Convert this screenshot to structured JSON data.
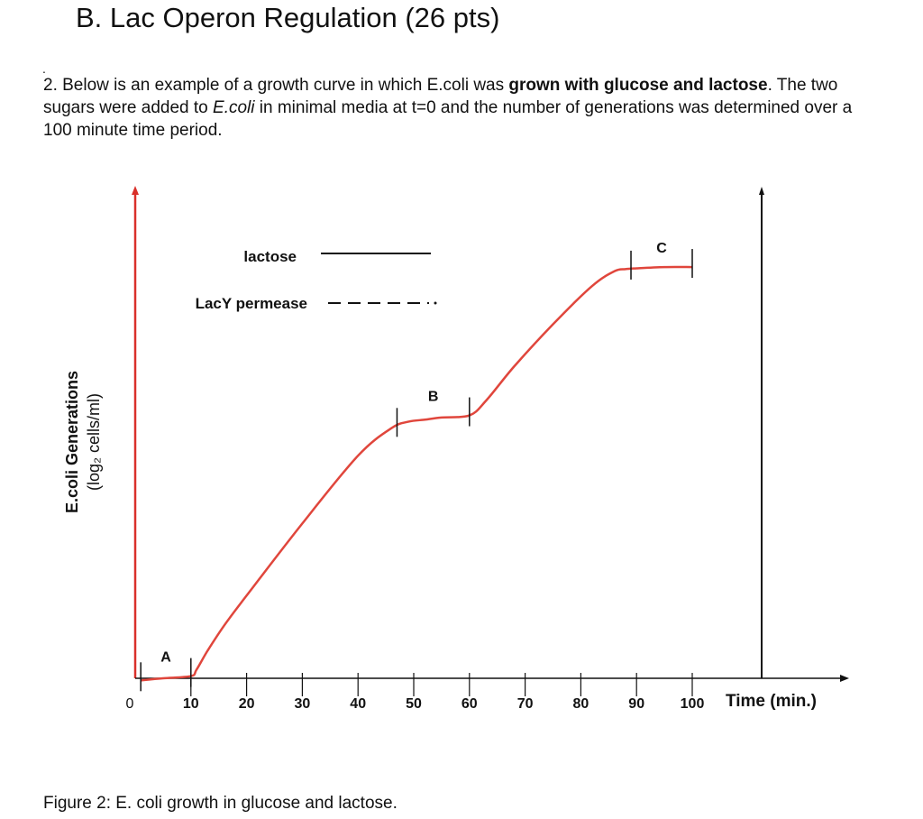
{
  "heading": "B. Lac Operon Regulation (26 pts)",
  "bullet": ".",
  "question": {
    "intro": "2. Below is an example of a growth curve in which E.coli was ",
    "bold1": "grown with glucose and lactose",
    "mid1": ". The two sugars were added to ",
    "italic1": "E.coli",
    "rest": " in minimal media at t=0 and the number of generations was determined over a 100 minute time period."
  },
  "caption": "Figure 2:  E. coli growth in glucose and lactose.",
  "colors": {
    "curve": "#e0463c",
    "axis": "#111111",
    "y_axis": "#d9302a"
  },
  "chart_data": {
    "type": "line",
    "xlabel": "Time (min.)",
    "ylabel_main": "E.coli Generations",
    "ylabel_sub": "(log₂ cells/ml)",
    "x_ticks": [
      0,
      10,
      20,
      30,
      40,
      50,
      60,
      70,
      80,
      90,
      100
    ],
    "xlim": [
      0,
      100
    ],
    "ylim": [
      0,
      10
    ],
    "series": [
      {
        "x": [
          1,
          5,
          10,
          11,
          13,
          16,
          20,
          30,
          40,
          46,
          49,
          52,
          55,
          60,
          63,
          68,
          75,
          82,
          86,
          88,
          90,
          95,
          100
        ],
        "y": [
          0.1,
          0.15,
          0.2,
          0.35,
          0.8,
          1.4,
          2.1,
          3.8,
          5.4,
          6.05,
          6.2,
          6.25,
          6.3,
          6.35,
          6.7,
          7.5,
          8.5,
          9.4,
          9.75,
          9.8,
          9.82,
          9.85,
          9.85
        ]
      }
    ],
    "legend": [
      {
        "label": "lactose",
        "style": "solid"
      },
      {
        "label": "LacY permease",
        "style": "dashed"
      }
    ],
    "annotations": [
      {
        "label": "A",
        "x_start": 1,
        "x_end": 10
      },
      {
        "label": "B",
        "x_start": 47,
        "x_end": 60
      },
      {
        "label": "C",
        "x_start": 89,
        "x_end": 100
      }
    ]
  }
}
